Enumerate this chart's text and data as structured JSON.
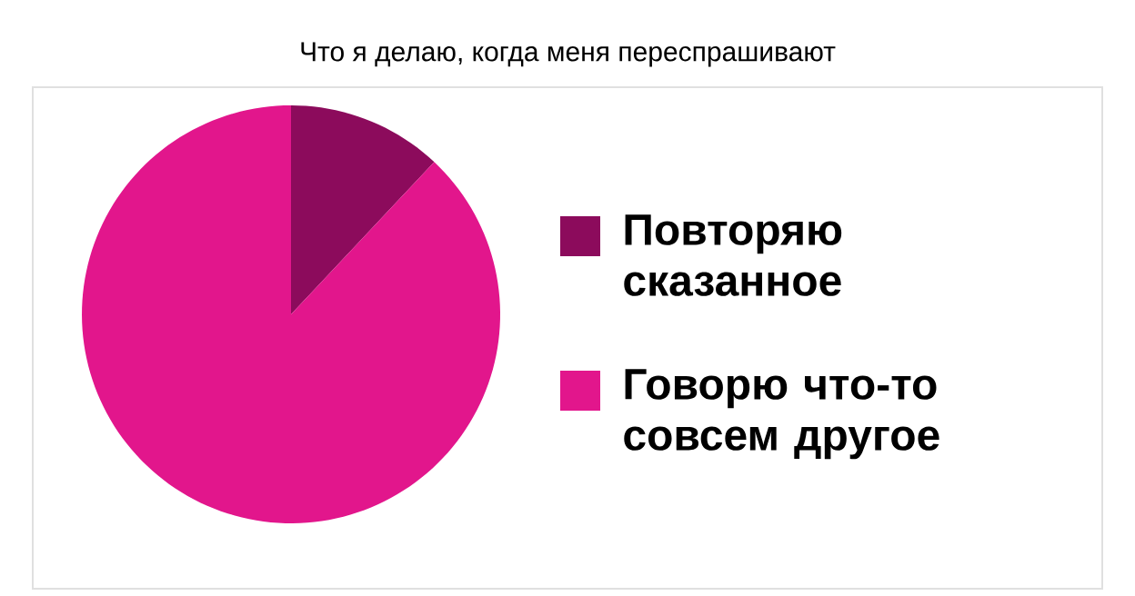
{
  "chart_data": {
    "type": "pie",
    "title": "Что я делаю, когда меня переспрашивают",
    "categories": [
      "Повторяю сказанное",
      "Говорю что-то совсем другое"
    ],
    "values": [
      12,
      88
    ],
    "colors": [
      "#8c0b5c",
      "#e2168c"
    ],
    "legend": "right"
  }
}
